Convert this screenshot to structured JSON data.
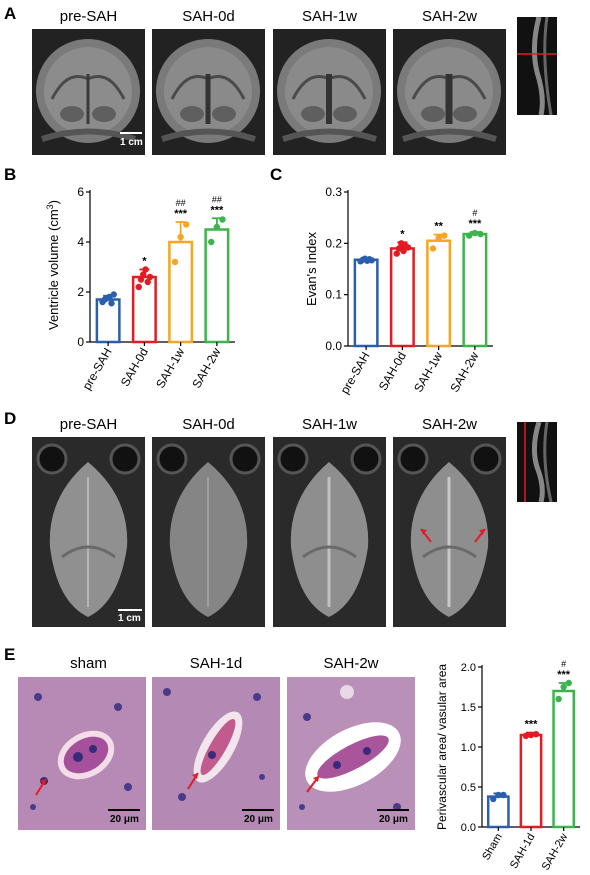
{
  "panelA": {
    "letter": "A",
    "titles": [
      "pre-SAH",
      "SAH-0d",
      "SAH-1w",
      "SAH-2w"
    ],
    "scale_bar": "1 cm"
  },
  "panelD": {
    "letter": "D",
    "titles": [
      "pre-SAH",
      "SAH-0d",
      "SAH-1w",
      "SAH-2w"
    ],
    "scale_bar": "1 cm"
  },
  "panelE": {
    "letter": "E",
    "titles": [
      "sham",
      "SAH-1d",
      "SAH-2w"
    ],
    "scale_bars": [
      "20 μm",
      "20 μm",
      "20 μm"
    ]
  },
  "chart_data": [
    {
      "id": "B",
      "letter": "B",
      "type": "bar",
      "ylabel": "Ventricle volume (cm",
      "ylabel_sup": "3",
      "ylabel_close": ")",
      "ylim": [
        0,
        6
      ],
      "yticks": [
        "0",
        "2",
        "4",
        "6"
      ],
      "categories": [
        "pre-SAH",
        "SAH-0d",
        "SAH-1w",
        "SAH-2w"
      ],
      "colors": [
        "#2b5fad",
        "#e31b23",
        "#f5a623",
        "#3cb44b"
      ],
      "values": [
        1.7,
        2.6,
        4.0,
        4.5
      ],
      "errors": [
        0.15,
        0.3,
        0.8,
        0.45
      ],
      "points": [
        [
          1.6,
          1.7,
          1.75,
          1.8,
          1.55,
          1.9
        ],
        [
          2.2,
          2.5,
          2.7,
          2.9,
          2.4,
          2.6
        ],
        [
          3.2,
          4.2,
          4.7
        ],
        [
          4.0,
          4.6,
          4.9
        ]
      ],
      "sig_main": [
        "",
        "*",
        "***",
        "***"
      ],
      "sig_hash": [
        "",
        "",
        "##",
        "##"
      ]
    },
    {
      "id": "C",
      "letter": "C",
      "type": "bar",
      "ylabel": "Evan's Index",
      "ylim": [
        0.0,
        0.3
      ],
      "yticks": [
        "0.0",
        "0.1",
        "0.2",
        "0.3"
      ],
      "categories": [
        "pre-SAH",
        "SAH-0d",
        "SAH-1w",
        "SAH-2w"
      ],
      "colors": [
        "#2b5fad",
        "#e31b23",
        "#f5a623",
        "#3cb44b"
      ],
      "values": [
        0.168,
        0.19,
        0.205,
        0.218
      ],
      "errors": [
        0.003,
        0.012,
        0.012,
        0.004
      ],
      "points": [
        [
          0.165,
          0.168,
          0.17,
          0.166,
          0.169,
          0.167
        ],
        [
          0.18,
          0.19,
          0.2,
          0.185,
          0.195,
          0.192
        ],
        [
          0.19,
          0.21,
          0.215
        ],
        [
          0.215,
          0.22,
          0.218
        ]
      ],
      "sig_main": [
        "",
        "*",
        "**",
        "***"
      ],
      "sig_hash": [
        "",
        "",
        "",
        "#"
      ]
    },
    {
      "id": "E",
      "type": "bar",
      "ylabel": "Perivascular area/ vasular area",
      "ylim": [
        0.0,
        2.0
      ],
      "yticks": [
        "0.0",
        "0.5",
        "1.0",
        "1.5",
        "2.0"
      ],
      "categories": [
        "Sham",
        "SAH-1d",
        "SAH-2w"
      ],
      "colors": [
        "#2b5fad",
        "#e31b23",
        "#3cb44b"
      ],
      "values": [
        0.38,
        1.15,
        1.7
      ],
      "errors": [
        0.04,
        0.03,
        0.1
      ],
      "points": [
        [
          0.35,
          0.4,
          0.4
        ],
        [
          1.14,
          1.15,
          1.16
        ],
        [
          1.6,
          1.75,
          1.8
        ]
      ],
      "sig_main": [
        "",
        "***",
        "***"
      ],
      "sig_hash": [
        "",
        "",
        "#"
      ]
    }
  ]
}
